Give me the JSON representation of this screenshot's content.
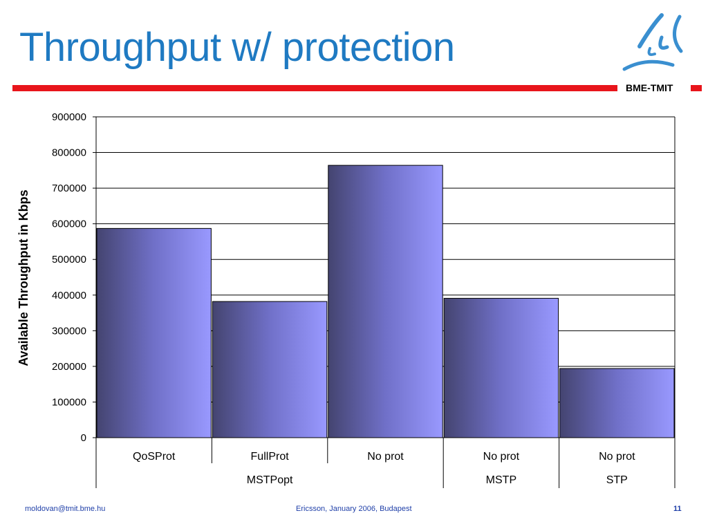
{
  "slide": {
    "title": "Throughput w/ protection",
    "brand": "BME-TMIT",
    "footer_left": "moldovan@tmit.bme.hu",
    "footer_center": "Ericsson,  January 2006,  Budapest",
    "page_number": "11"
  },
  "colors": {
    "title": "#1f7ac2",
    "accent_bar": "#e8151b",
    "bar_dark": "#444470",
    "bar_light": "#9999ff",
    "footer": "#1f3fa8"
  },
  "chart_data": {
    "type": "bar",
    "categories": [
      "QoSProt",
      "FullProt",
      "No prot",
      "No prot",
      "No prot"
    ],
    "groups": [
      {
        "label": "MSTPopt",
        "count": 3
      },
      {
        "label": "MSTP",
        "count": 1
      },
      {
        "label": "STP",
        "count": 1
      }
    ],
    "values": [
      587000,
      382000,
      764000,
      391000,
      194000
    ],
    "title": "",
    "xlabel": "",
    "ylabel": "Available Throughput in Kbps",
    "ylim": [
      0,
      900000
    ],
    "yticks": [
      "0",
      "100000",
      "200000",
      "300000",
      "400000",
      "500000",
      "600000",
      "700000",
      "800000",
      "900000"
    ],
    "grid": true
  }
}
